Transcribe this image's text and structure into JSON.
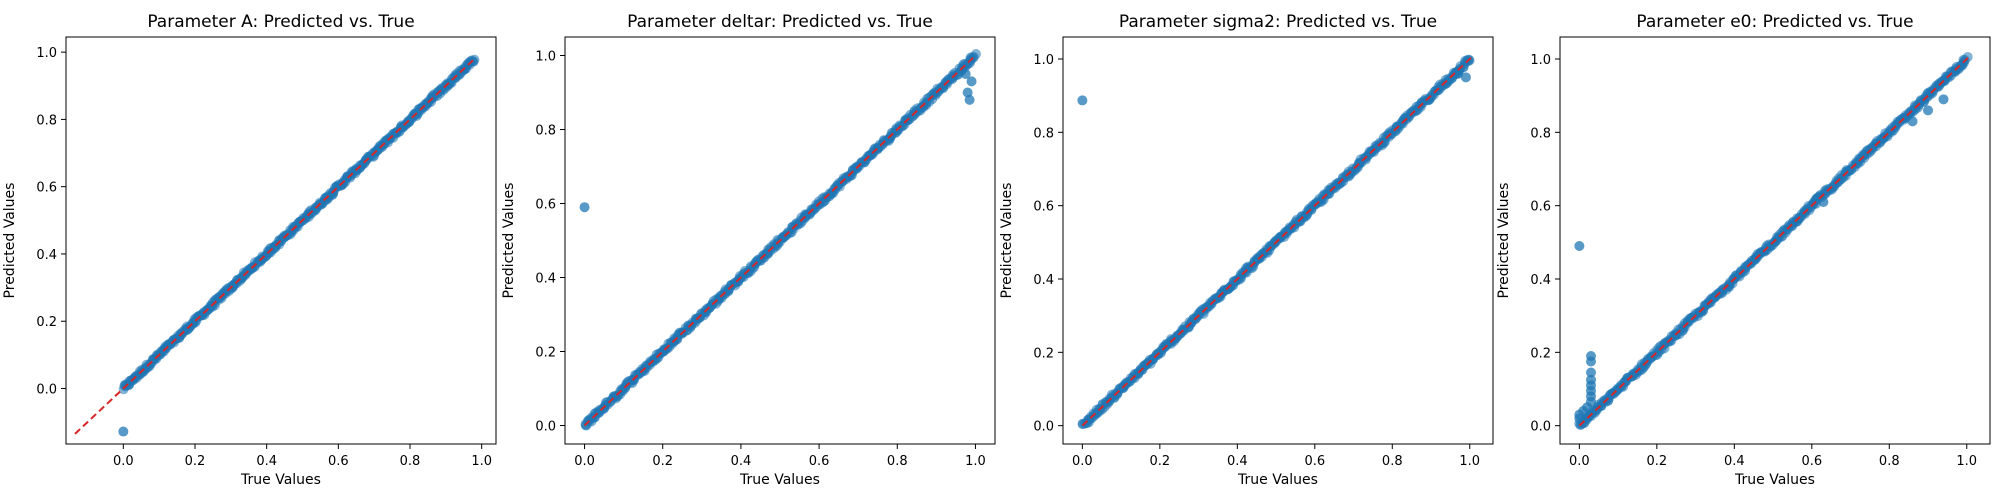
{
  "colors": {
    "point": "#1f77b4",
    "diagonal": "#d62728",
    "axis": "#000000"
  },
  "chart_data": [
    {
      "type": "scatter",
      "title": "Parameter A: Predicted vs. True",
      "xlabel": "True Values",
      "ylabel": "Predicted Values",
      "xlim": [
        -0.16,
        1.04
      ],
      "ylim": [
        -0.165,
        1.045
      ],
      "xticks": [
        0.0,
        0.2,
        0.4,
        0.6,
        0.8,
        1.0
      ],
      "xticklabels": [
        "0.0",
        "0.2",
        "0.4",
        "0.6",
        "0.8",
        "1.0"
      ],
      "yticks": [
        0.0,
        0.2,
        0.4,
        0.6,
        0.8,
        1.0
      ],
      "yticklabels": [
        "0.0",
        "0.2",
        "0.4",
        "0.6",
        "0.8",
        "1.0"
      ],
      "diagonal": [
        -0.135,
        0.98
      ],
      "dense_range": [
        0.0,
        0.98
      ],
      "outliers": [
        {
          "x": 0.0,
          "y": -0.128
        }
      ]
    },
    {
      "type": "scatter",
      "title": "Parameter deltar: Predicted vs. True",
      "xlabel": "True Values",
      "ylabel": "Predicted Values",
      "xlim": [
        -0.05,
        1.05
      ],
      "ylim": [
        -0.05,
        1.05
      ],
      "xticks": [
        0.0,
        0.2,
        0.4,
        0.6,
        0.8,
        1.0
      ],
      "xticklabels": [
        "0.0",
        "0.2",
        "0.4",
        "0.6",
        "0.8",
        "1.0"
      ],
      "yticks": [
        0.0,
        0.2,
        0.4,
        0.6,
        0.8,
        1.0
      ],
      "yticklabels": [
        "0.0",
        "0.2",
        "0.4",
        "0.6",
        "0.8",
        "1.0"
      ],
      "diagonal": [
        0.0,
        1.0
      ],
      "dense_range": [
        0.0,
        1.0
      ],
      "outliers": [
        {
          "x": 0.0,
          "y": 0.59
        },
        {
          "x": 0.98,
          "y": 0.9
        },
        {
          "x": 0.985,
          "y": 0.88
        },
        {
          "x": 0.99,
          "y": 0.93
        },
        {
          "x": 0.975,
          "y": 0.95
        }
      ]
    },
    {
      "type": "scatter",
      "title": "Parameter sigma2: Predicted vs. True",
      "xlabel": "True Values",
      "ylabel": "Predicted Values",
      "xlim": [
        -0.05,
        1.06
      ],
      "ylim": [
        -0.05,
        1.06
      ],
      "xticks": [
        0.0,
        0.2,
        0.4,
        0.6,
        0.8,
        1.0
      ],
      "xticklabels": [
        "0.0",
        "0.2",
        "0.4",
        "0.6",
        "0.8",
        "1.0"
      ],
      "yticks": [
        0.0,
        0.2,
        0.4,
        0.6,
        0.8,
        1.0
      ],
      "yticklabels": [
        "0.0",
        "0.2",
        "0.4",
        "0.6",
        "0.8",
        "1.0"
      ],
      "diagonal": [
        0.0,
        1.01
      ],
      "dense_range": [
        0.0,
        1.0
      ],
      "outliers": [
        {
          "x": 0.0,
          "y": 0.887
        },
        {
          "x": 0.97,
          "y": 0.96
        },
        {
          "x": 0.99,
          "y": 0.95
        }
      ]
    },
    {
      "type": "scatter",
      "title": "Parameter e0: Predicted vs. True",
      "xlabel": "True Values",
      "ylabel": "Predicted Values",
      "xlim": [
        -0.05,
        1.06
      ],
      "ylim": [
        -0.05,
        1.06
      ],
      "xticks": [
        0.0,
        0.2,
        0.4,
        0.6,
        0.8,
        1.0
      ],
      "xticklabels": [
        "0.0",
        "0.2",
        "0.4",
        "0.6",
        "0.8",
        "1.0"
      ],
      "yticks": [
        0.0,
        0.2,
        0.4,
        0.6,
        0.8,
        1.0
      ],
      "yticklabels": [
        "0.0",
        "0.2",
        "0.4",
        "0.6",
        "0.8",
        "1.0"
      ],
      "diagonal": [
        0.0,
        1.01
      ],
      "dense_range": [
        0.0,
        1.0
      ],
      "outliers": [
        {
          "x": 0.0,
          "y": 0.49
        },
        {
          "x": 0.03,
          "y": 0.19
        },
        {
          "x": 0.03,
          "y": 0.175
        },
        {
          "x": 0.03,
          "y": 0.145
        },
        {
          "x": 0.03,
          "y": 0.125
        },
        {
          "x": 0.03,
          "y": 0.11
        },
        {
          "x": 0.03,
          "y": 0.095
        },
        {
          "x": 0.03,
          "y": 0.08
        },
        {
          "x": 0.03,
          "y": 0.065
        },
        {
          "x": 0.02,
          "y": 0.05
        },
        {
          "x": 0.01,
          "y": 0.04
        },
        {
          "x": 0.0,
          "y": 0.03
        },
        {
          "x": 0.0,
          "y": 0.02
        },
        {
          "x": 0.94,
          "y": 0.89
        },
        {
          "x": 0.9,
          "y": 0.86
        },
        {
          "x": 0.86,
          "y": 0.83
        },
        {
          "x": 0.63,
          "y": 0.61
        }
      ]
    }
  ]
}
